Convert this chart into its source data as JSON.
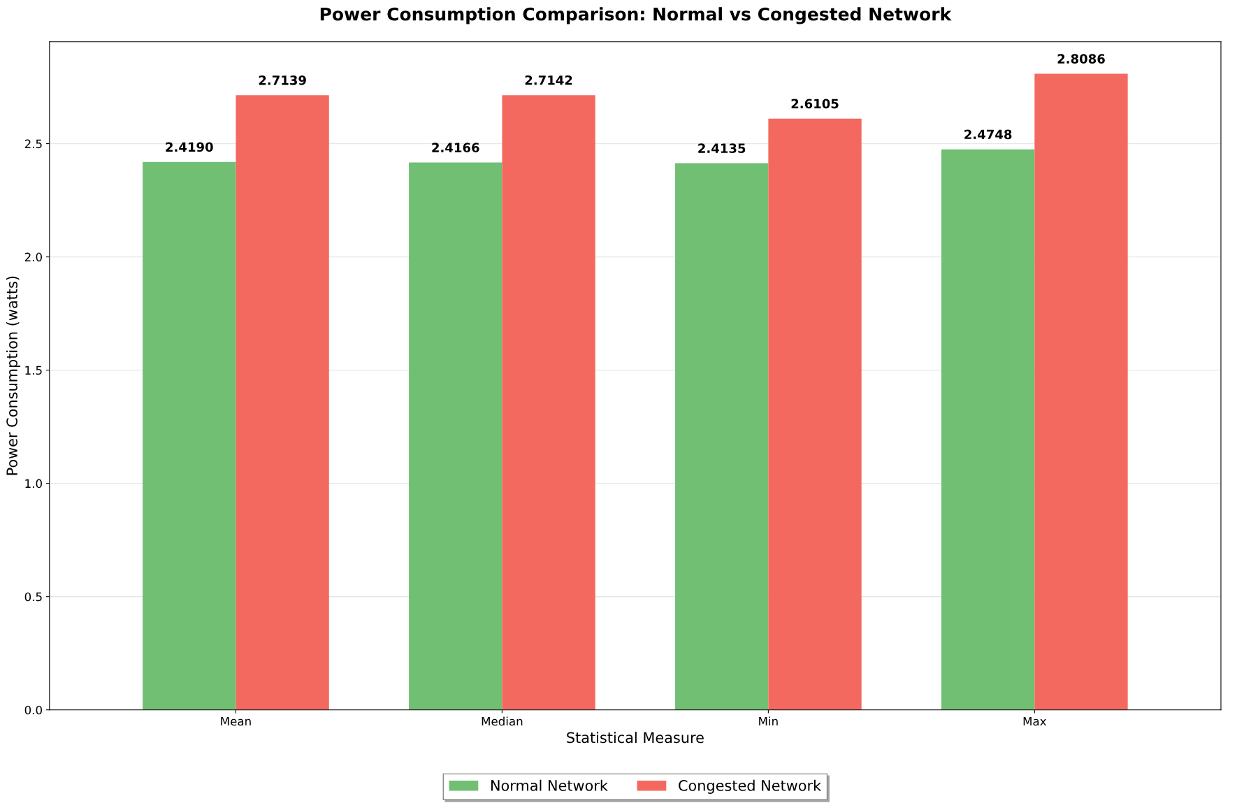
{
  "chart_data": {
    "type": "bar",
    "title": "Power Consumption Comparison: Normal vs Congested Network",
    "xlabel": "Statistical Measure",
    "ylabel": "Power Consumption (watts)",
    "categories": [
      "Mean",
      "Median",
      "Min",
      "Max"
    ],
    "series": [
      {
        "name": "Normal Network",
        "color": "#70bf73",
        "values": [
          2.419,
          2.4166,
          2.4135,
          2.4748
        ],
        "value_labels": [
          "2.4190",
          "2.4166",
          "2.4135",
          "2.4748"
        ]
      },
      {
        "name": "Congested Network",
        "color": "#f4695f",
        "values": [
          2.7139,
          2.7142,
          2.6105,
          2.8086
        ],
        "value_labels": [
          "2.7139",
          "2.7142",
          "2.6105",
          "2.8086"
        ]
      }
    ],
    "ylim": [
      0,
      2.95
    ],
    "yticks": [
      {
        "value": 0,
        "label": "0.0"
      },
      {
        "value": 0.5,
        "label": "0.5"
      },
      {
        "value": 1,
        "label": "1.0"
      },
      {
        "value": 1.5,
        "label": "1.5"
      },
      {
        "value": 2,
        "label": "2.0"
      },
      {
        "value": 2.5,
        "label": "2.5"
      }
    ],
    "grid": "y",
    "legend": "bottom"
  }
}
